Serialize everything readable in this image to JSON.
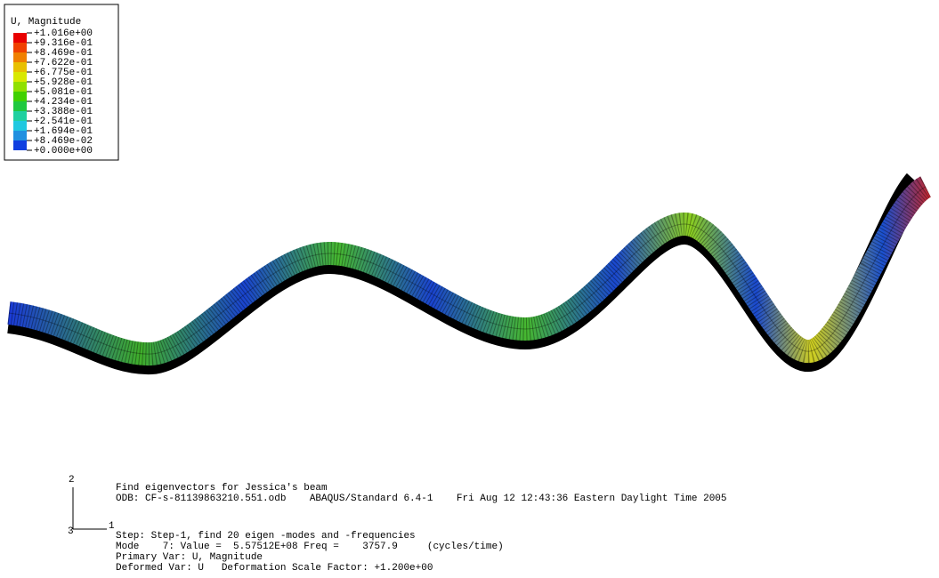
{
  "legend": {
    "title": "U, Magnitude",
    "labels": [
      "+1.016e+00",
      "+9.316e-01",
      "+8.469e-01",
      "+7.622e-01",
      "+6.775e-01",
      "+5.928e-01",
      "+5.081e-01",
      "+4.234e-01",
      "+3.388e-01",
      "+2.541e-01",
      "+1.694e-01",
      "+8.469e-02",
      "+0.000e+00"
    ]
  },
  "triad": {
    "y": "2",
    "x": "1",
    "z": "3"
  },
  "info": {
    "lines": [
      "Find eigenvectors for Jessica's beam",
      "ODB: CF-s-81139863210.551.odb    ABAQUS/Standard 6.4-1    Fri Aug 12 12:43:36 Eastern Daylight Time 2005",
      "Step: Step-1, find 20 eigen -modes and -frequencies",
      "Mode    7: Value =  5.57512E+08 Freq =    3757.9     (cycles/time)",
      "Primary Var: U, Magnitude",
      "Deformed Var: U   Deformation Scale Factor: +1.200e+00"
    ]
  }
}
